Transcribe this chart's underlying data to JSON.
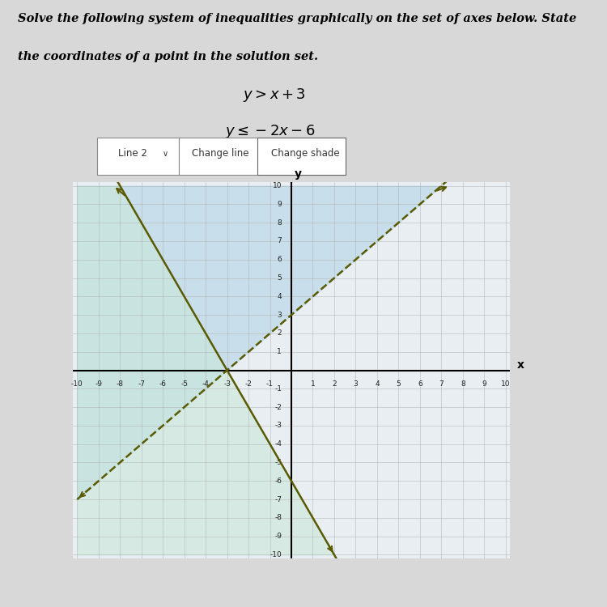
{
  "line1_slope": 1,
  "line1_intercept": 3,
  "line1_style": "--",
  "line1_color": "#5a5a00",
  "line2_slope": -2,
  "line2_intercept": -6,
  "line2_style": "-",
  "line2_color": "#5a5a00",
  "shade1_color": "#b8d8e8",
  "shade1_alpha": 0.65,
  "shade2_color": "#c8e8d8",
  "shade2_alpha": 0.55,
  "xlim": [
    -10,
    10
  ],
  "ylim": [
    -10,
    10
  ],
  "xlabel": "x",
  "ylabel": "y",
  "grid_color": "#aaaaaa",
  "grid_alpha": 0.6,
  "bg_color": "#dde4ec",
  "page_color": "#d8d8d8",
  "text_line1": "Solve the following system of inequalities graphically on the set of axes below. State",
  "text_line2": "the coordinates of a point in the solution set.",
  "ineq1": "y > x + 3",
  "ineq2": "y \\leq -2x - 6",
  "btn1": "Line 2",
  "btn2": "Change line",
  "btn3": "Change shade"
}
